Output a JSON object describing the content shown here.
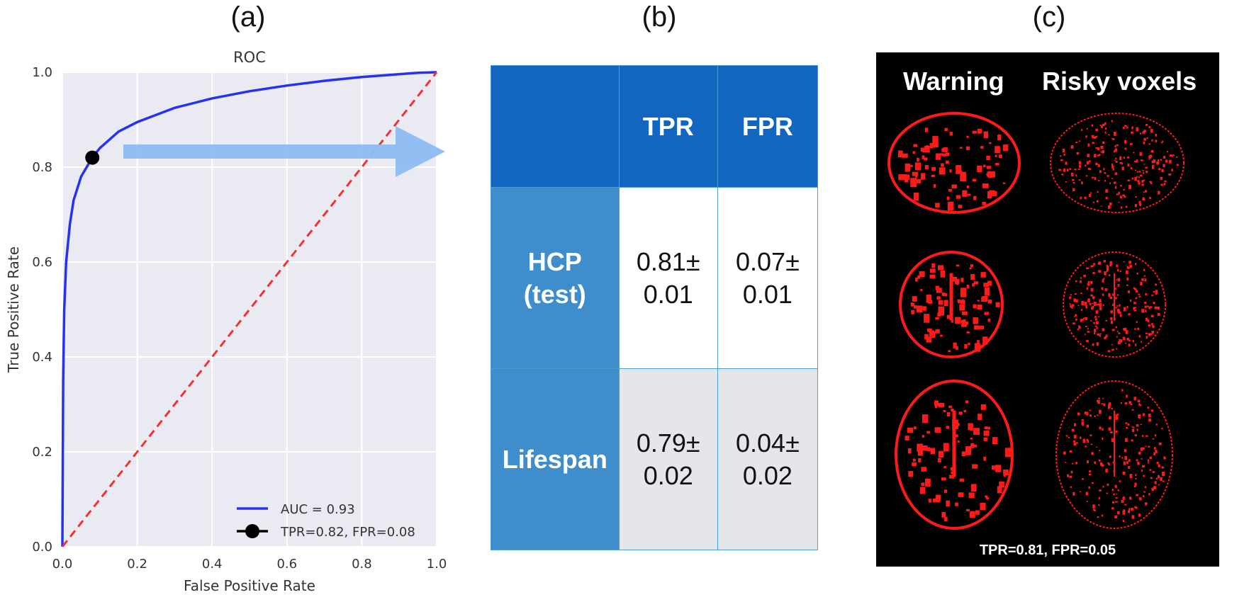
{
  "panels": {
    "a": "(a)",
    "b": "(b)",
    "c": "(c)"
  },
  "chart_data": {
    "type": "line",
    "title": "ROC",
    "xlabel": "False Positive Rate",
    "ylabel": "True Positive Rate",
    "xlim": [
      0,
      1
    ],
    "ylim": [
      0,
      1
    ],
    "xticks": [
      "0.0",
      "0.2",
      "0.4",
      "0.6",
      "0.8",
      "1.0"
    ],
    "yticks": [
      "0.0",
      "0.2",
      "0.4",
      "0.6",
      "0.8",
      "1.0"
    ],
    "grid": true,
    "legend_position": "lower-right",
    "series": [
      {
        "name": "AUC = 0.93",
        "color": "#2632f2",
        "style": "solid",
        "x": [
          0,
          0.002,
          0.005,
          0.01,
          0.02,
          0.03,
          0.05,
          0.08,
          0.1,
          0.15,
          0.2,
          0.3,
          0.4,
          0.5,
          0.6,
          0.7,
          0.8,
          0.9,
          0.95,
          1.0
        ],
        "y": [
          0,
          0.35,
          0.5,
          0.6,
          0.68,
          0.73,
          0.78,
          0.82,
          0.84,
          0.875,
          0.895,
          0.925,
          0.945,
          0.96,
          0.972,
          0.982,
          0.99,
          0.996,
          0.999,
          1.0
        ]
      },
      {
        "name": "",
        "color": "#f03232",
        "style": "dashed",
        "x": [
          0,
          1
        ],
        "y": [
          0,
          1
        ]
      }
    ],
    "points": [
      {
        "name": "TPR=0.82, FPR=0.08",
        "x": 0.08,
        "y": 0.82,
        "color": "#000000"
      }
    ]
  },
  "arrow_color": "#8dbdf2",
  "table": {
    "headers": [
      "",
      "TPR",
      "FPR"
    ],
    "rows": [
      {
        "label": "HCP\n(test)",
        "tpr": "0.81±\n0.01",
        "fpr": "0.07±\n0.01"
      },
      {
        "label": "Lifespan",
        "tpr": "0.79±\n0.02",
        "fpr": "0.04±\n0.02"
      }
    ]
  },
  "brain_panel": {
    "col_titles": [
      "Warning",
      "Risky voxels"
    ],
    "caption": "TPR=0.81, FPR=0.05",
    "views": [
      "sagittal",
      "coronal",
      "axial"
    ],
    "voxel_color": "#ff1a1a"
  }
}
